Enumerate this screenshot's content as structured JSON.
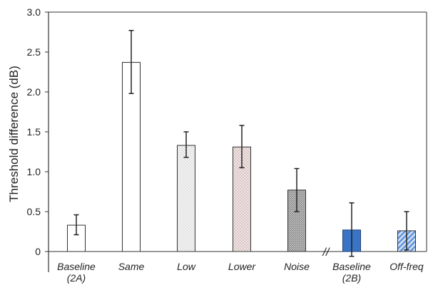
{
  "chart_data": {
    "type": "bar",
    "title": "",
    "xlabel": "",
    "ylabel": "Threshold difference (dB)",
    "ylim": [
      0,
      3.0
    ],
    "yticks": [
      {
        "value": 0,
        "label": "0"
      },
      {
        "value": 0.5,
        "label": "0.5"
      },
      {
        "value": 1.0,
        "label": "1.0"
      },
      {
        "value": 1.5,
        "label": "1.5"
      },
      {
        "value": 2.0,
        "label": "2.0"
      },
      {
        "value": 2.5,
        "label": "2.5"
      },
      {
        "value": 3.0,
        "label": "3.0"
      }
    ],
    "grid": false,
    "legend": "none",
    "axis_break_marker": "//",
    "categories": [
      {
        "lines": [
          "Baseline",
          "(2A)"
        ]
      },
      {
        "lines": [
          "Same"
        ]
      },
      {
        "lines": [
          "Low"
        ]
      },
      {
        "lines": [
          "Lower"
        ]
      },
      {
        "lines": [
          "Noise"
        ]
      },
      {
        "lines": [
          "Baseline",
          "(2B)"
        ]
      },
      {
        "lines": [
          "Off-freq"
        ]
      }
    ],
    "bars": [
      {
        "value": 0.33,
        "err_low": 0.21,
        "err_high": 0.46,
        "fill": "white",
        "color": "#ffffff"
      },
      {
        "value": 2.37,
        "err_low": 1.98,
        "err_high": 2.77,
        "fill": "white",
        "color": "#ffffff"
      },
      {
        "value": 1.33,
        "err_low": 1.18,
        "err_high": 1.5,
        "fill": "light-dots",
        "color": "#d6d6d6"
      },
      {
        "value": 1.31,
        "err_low": 1.05,
        "err_high": 1.58,
        "fill": "pink-dots",
        "color": "#d8b8b8"
      },
      {
        "value": 0.77,
        "err_low": 0.5,
        "err_high": 1.04,
        "fill": "dense-dots",
        "color": "#888888"
      },
      {
        "value": 0.27,
        "err_low": -0.06,
        "err_high": 0.61,
        "fill": "solid-blue",
        "color": "#3a74c4"
      },
      {
        "value": 0.26,
        "err_low": 0.02,
        "err_high": 0.5,
        "fill": "blue-hatch",
        "color": "#5b8fd6"
      }
    ]
  }
}
